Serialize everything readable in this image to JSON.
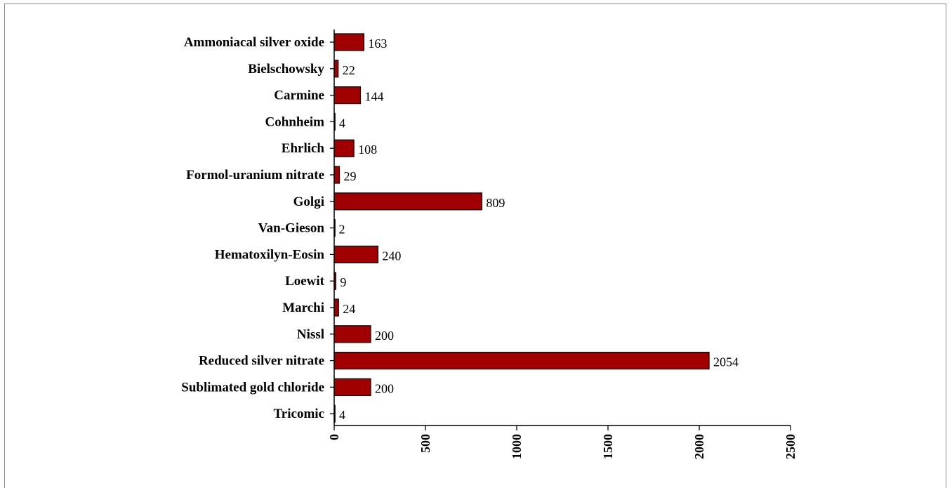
{
  "chart_data": {
    "type": "bar",
    "orientation": "horizontal",
    "categories": [
      "Ammoniacal silver oxide",
      "Bielschowsky",
      "Carmine",
      "Cohnheim",
      "Ehrlich",
      "Formol-uranium nitrate",
      "Golgi",
      "Van-Gieson",
      "Hematoxilyn-Eosin",
      "Loewit",
      "Marchi",
      "Nissl",
      "Reduced silver nitrate",
      "Sublimated gold chloride",
      "Tricomic"
    ],
    "values": [
      163,
      22,
      144,
      4,
      108,
      29,
      809,
      2,
      240,
      9,
      24,
      200,
      2054,
      200,
      4
    ],
    "value_labels": [
      "163",
      "22",
      "144",
      "4",
      "108",
      "29",
      "809",
      "2",
      "240",
      "9",
      "24",
      "200",
      "2054",
      "200",
      "4"
    ],
    "xlim": [
      0,
      2500
    ],
    "xticks": [
      0,
      500,
      1000,
      1500,
      2000,
      2500
    ],
    "xtick_labels": [
      "0",
      "500",
      "1000",
      "1500",
      "2000",
      "2500"
    ],
    "title": "",
    "xlabel": "",
    "ylabel": "",
    "grid": false,
    "legend": "none",
    "bar_color": "#a00000",
    "bar_edge_color": "#000000"
  }
}
